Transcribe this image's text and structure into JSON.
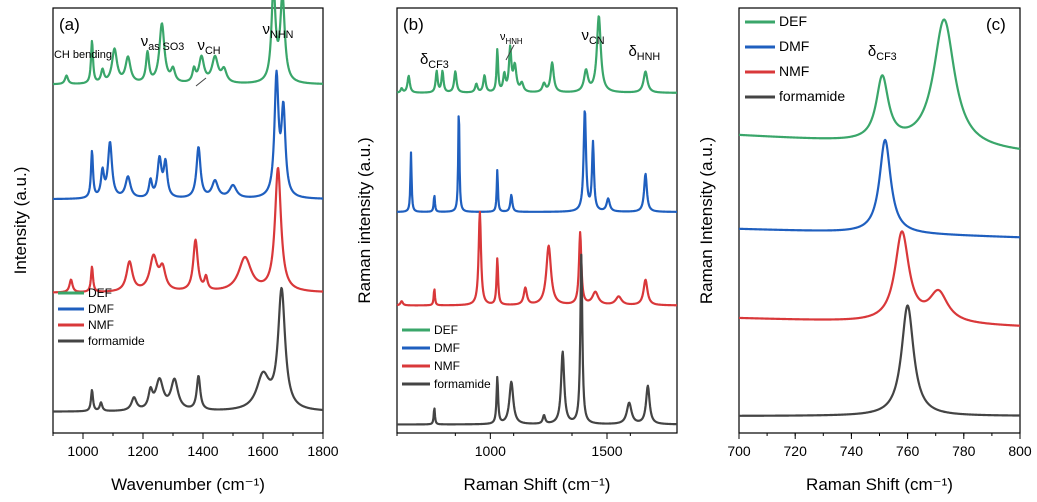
{
  "colors": {
    "DEF": "#3aa66a",
    "DMF": "#1f5fbf",
    "NMF": "#d9383a",
    "formamide": "#444444"
  },
  "chart_data": [
    {
      "panel": "a",
      "label": "(a)",
      "type": "line",
      "xlabel": "Wavenumber (cm⁻¹)",
      "ylabel": "Intensity (a.u.)",
      "xlim": [
        900,
        1800
      ],
      "xticks": [
        "1000",
        "1200",
        "1400",
        "1600",
        "1800"
      ],
      "xtick_values": [
        1000,
        1200,
        1400,
        1600,
        1800
      ],
      "legend": [
        "DEF",
        "DMF",
        "NMF",
        "formamide"
      ],
      "legend_position": "bottom-left",
      "annotations": [
        {
          "text": "CH bending",
          "x": 1000
        },
        {
          "text": "νas SO3",
          "x": 1265
        },
        {
          "text": "νCH",
          "x": 1420
        },
        {
          "text": "νNHN",
          "x": 1650
        }
      ],
      "series": [
        {
          "name": "DEF",
          "baseline": 0.82,
          "peaks": [
            [
              945,
              0.02,
              6
            ],
            [
              1030,
              0.1,
              4
            ],
            [
              1065,
              0.03,
              6
            ],
            [
              1105,
              0.08,
              10
            ],
            [
              1150,
              0.06,
              10
            ],
            [
              1215,
              0.07,
              6
            ],
            [
              1263,
              0.14,
              10
            ],
            [
              1300,
              0.03,
              8
            ],
            [
              1370,
              0.03,
              6
            ],
            [
              1395,
              0.06,
              10
            ],
            [
              1440,
              0.06,
              12
            ],
            [
              1470,
              0.03,
              10
            ],
            [
              1635,
              0.22,
              8
            ],
            [
              1665,
              0.2,
              9
            ]
          ]
        },
        {
          "name": "DMF",
          "baseline": 0.55,
          "peaks": [
            [
              1030,
              0.11,
              4
            ],
            [
              1065,
              0.06,
              6
            ],
            [
              1090,
              0.13,
              8
            ],
            [
              1150,
              0.05,
              10
            ],
            [
              1225,
              0.04,
              6
            ],
            [
              1255,
              0.09,
              8
            ],
            [
              1275,
              0.08,
              7
            ],
            [
              1385,
              0.12,
              8
            ],
            [
              1440,
              0.04,
              12
            ],
            [
              1500,
              0.03,
              14
            ],
            [
              1645,
              0.28,
              8
            ],
            [
              1668,
              0.2,
              8
            ]
          ]
        },
        {
          "name": "NMF",
          "baseline": 0.33,
          "peaks": [
            [
              960,
              0.03,
              6
            ],
            [
              1030,
              0.06,
              4
            ],
            [
              1155,
              0.07,
              12
            ],
            [
              1235,
              0.08,
              15
            ],
            [
              1265,
              0.05,
              12
            ],
            [
              1375,
              0.12,
              9
            ],
            [
              1410,
              0.03,
              6
            ],
            [
              1540,
              0.08,
              25
            ],
            [
              1650,
              0.29,
              12
            ]
          ]
        },
        {
          "name": "formamide",
          "baseline": 0.05,
          "peaks": [
            [
              1030,
              0.05,
              4
            ],
            [
              1060,
              0.02,
              5
            ],
            [
              1170,
              0.03,
              10
            ],
            [
              1225,
              0.04,
              8
            ],
            [
              1255,
              0.07,
              15
            ],
            [
              1305,
              0.07,
              14
            ],
            [
              1385,
              0.08,
              7
            ],
            [
              1600,
              0.08,
              25
            ],
            [
              1662,
              0.28,
              14
            ]
          ]
        }
      ]
    },
    {
      "panel": "b",
      "label": "(b)",
      "type": "line",
      "xlabel": "Raman Shift (cm⁻¹)",
      "ylabel": "Raman intensity (a.u.)",
      "xlim": [
        600,
        1800
      ],
      "xticks": [
        "1000",
        "1500"
      ],
      "xtick_values": [
        1000,
        1500
      ],
      "legend": [
        "DEF",
        "DMF",
        "NMF",
        "formamide"
      ],
      "legend_position": "bottom-left",
      "annotations": [
        {
          "text": "δCF3",
          "x": 760
        },
        {
          "text": "νHNH",
          "x": 1090
        },
        {
          "text": "νCN",
          "x": 1440
        },
        {
          "text": "δHNH",
          "x": 1660
        }
      ],
      "series": [
        {
          "name": "DEF",
          "baseline": 0.8,
          "peaks": [
            [
              620,
              0.01,
              5
            ],
            [
              650,
              0.04,
              6
            ],
            [
              770,
              0.05,
              5
            ],
            [
              795,
              0.05,
              5
            ],
            [
              850,
              0.05,
              6
            ],
            [
              940,
              0.02,
              6
            ],
            [
              975,
              0.04,
              6
            ],
            [
              1030,
              0.1,
              4
            ],
            [
              1060,
              0.04,
              6
            ],
            [
              1085,
              0.1,
              6
            ],
            [
              1105,
              0.06,
              8
            ],
            [
              1135,
              0.02,
              8
            ],
            [
              1230,
              0.02,
              8
            ],
            [
              1265,
              0.07,
              8
            ],
            [
              1410,
              0.05,
              10
            ],
            [
              1465,
              0.18,
              10
            ],
            [
              1665,
              0.05,
              10
            ]
          ]
        },
        {
          "name": "DMF",
          "baseline": 0.52,
          "peaks": [
            [
              660,
              0.14,
              3
            ],
            [
              760,
              0.04,
              3
            ],
            [
              865,
              0.25,
              3
            ],
            [
              1030,
              0.1,
              3
            ],
            [
              1090,
              0.04,
              5
            ],
            [
              1405,
              0.24,
              6
            ],
            [
              1440,
              0.16,
              5
            ],
            [
              1505,
              0.03,
              8
            ],
            [
              1665,
              0.09,
              7
            ]
          ]
        },
        {
          "name": "NMF",
          "baseline": 0.3,
          "peaks": [
            [
              620,
              0.01,
              6
            ],
            [
              760,
              0.04,
              3
            ],
            [
              955,
              0.22,
              6
            ],
            [
              1030,
              0.11,
              4
            ],
            [
              1150,
              0.04,
              8
            ],
            [
              1250,
              0.14,
              12
            ],
            [
              1385,
              0.17,
              6
            ],
            [
              1450,
              0.03,
              15
            ],
            [
              1550,
              0.02,
              15
            ],
            [
              1665,
              0.06,
              10
            ]
          ]
        },
        {
          "name": "formamide",
          "baseline": 0.02,
          "peaks": [
            [
              760,
              0.04,
              3
            ],
            [
              1030,
              0.11,
              4
            ],
            [
              1090,
              0.1,
              10
            ],
            [
              1230,
              0.02,
              6
            ],
            [
              1310,
              0.17,
              8
            ],
            [
              1390,
              0.4,
              5
            ],
            [
              1595,
              0.05,
              12
            ],
            [
              1675,
              0.09,
              9
            ]
          ]
        }
      ]
    },
    {
      "panel": "c",
      "label": "(c)",
      "type": "line",
      "xlabel": "Raman Shift (cm⁻¹)",
      "ylabel": "Raman Intensity (a.u.)",
      "xlim": [
        700,
        800
      ],
      "xticks": [
        "700",
        "720",
        "740",
        "760",
        "780",
        "800"
      ],
      "xtick_values": [
        700,
        720,
        740,
        760,
        780,
        800
      ],
      "legend": [
        "DEF",
        "DMF",
        "NMF",
        "formamide"
      ],
      "legend_position": "top-left",
      "annotations": [
        {
          "text": "δCF3",
          "x": 751
        }
      ],
      "series": [
        {
          "name": "DEF",
          "baseline": 0.66,
          "slope": 0.04,
          "peaks": [
            [
              751,
              0.15,
              2.6
            ],
            [
              773,
              0.3,
              4.5
            ]
          ]
        },
        {
          "name": "DMF",
          "baseline": 0.46,
          "slope": 0.02,
          "peaks": [
            [
              752,
              0.22,
              2.4
            ]
          ]
        },
        {
          "name": "NMF",
          "baseline": 0.25,
          "slope": 0.02,
          "peaks": [
            [
              758,
              0.21,
              3.0
            ],
            [
              771,
              0.07,
              4.0
            ]
          ]
        },
        {
          "name": "formamide",
          "baseline": 0.04,
          "slope": 0.0,
          "peaks": [
            [
              760,
              0.26,
              2.6
            ]
          ]
        }
      ]
    }
  ]
}
